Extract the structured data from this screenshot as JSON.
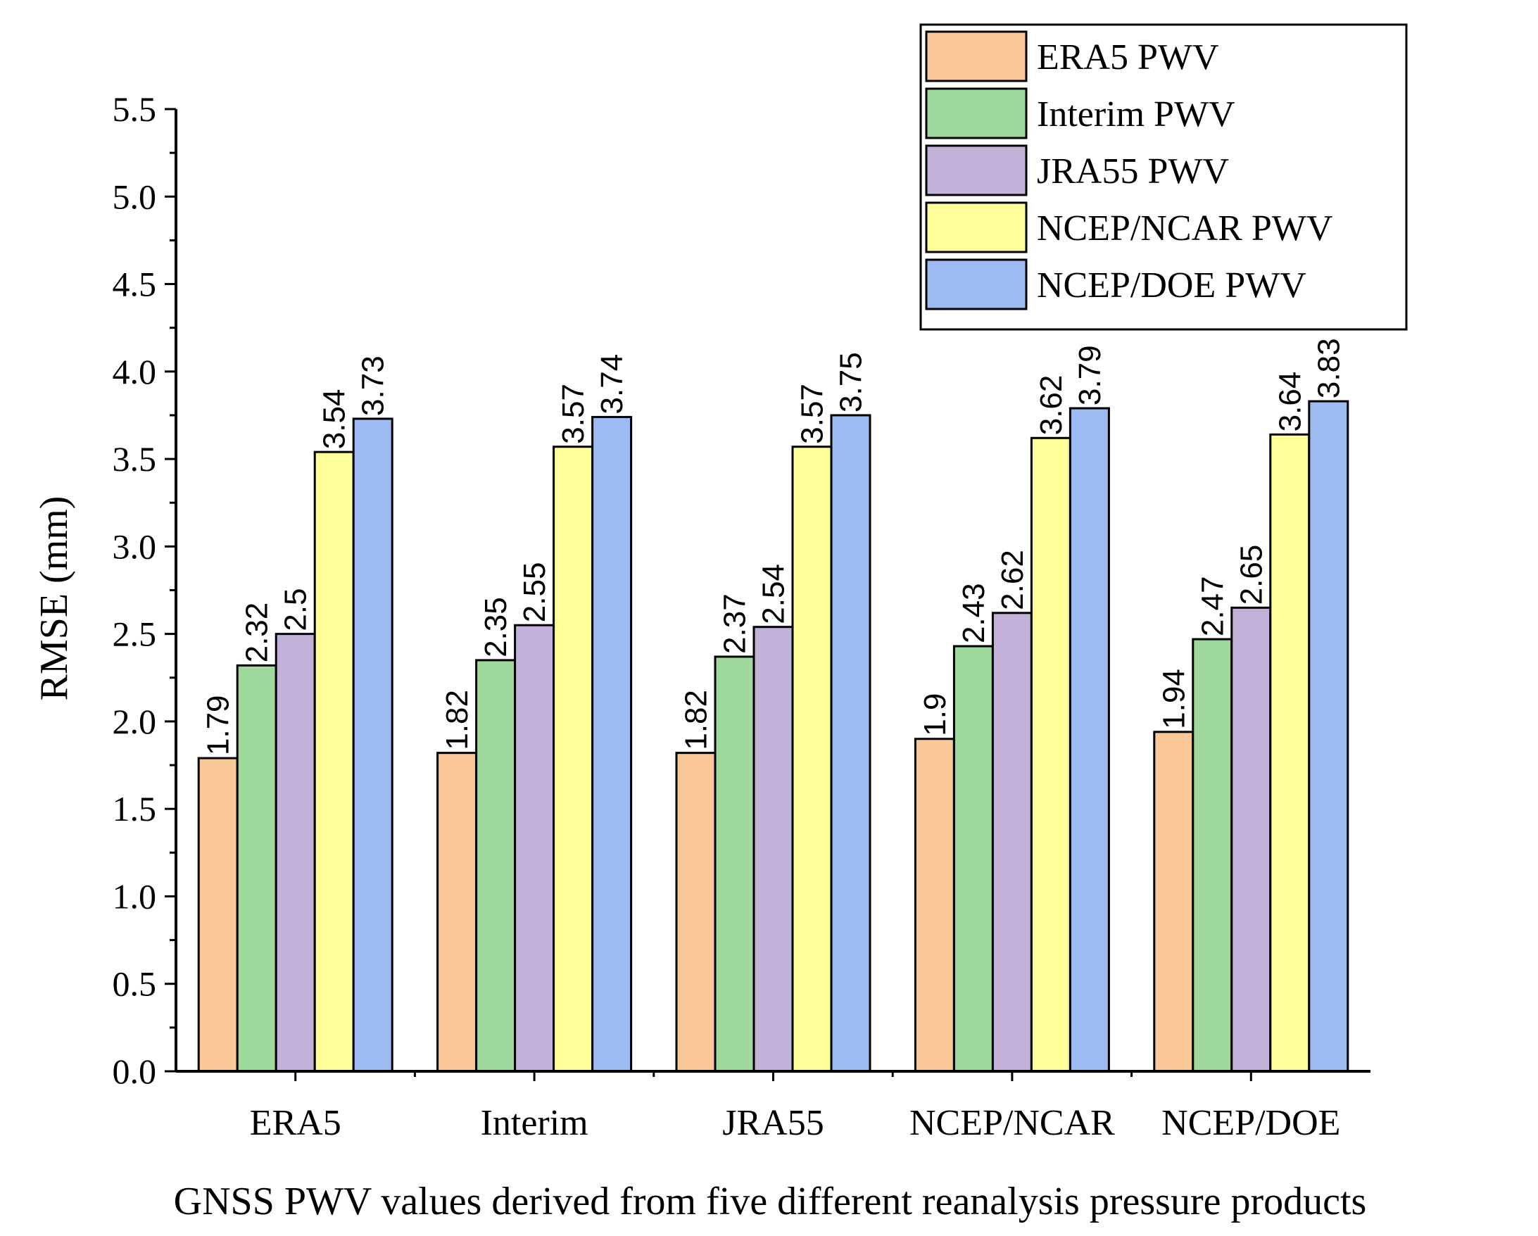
{
  "chart_data": {
    "type": "bar",
    "title": "",
    "xlabel": "GNSS PWV values derived from five different reanalysis pressure products",
    "ylabel": "RMSE (mm)",
    "ylim": [
      0,
      5.5
    ],
    "yticks": [
      "0.0",
      "0.5",
      "1.0",
      "1.5",
      "2.0",
      "2.5",
      "3.0",
      "3.5",
      "4.0",
      "4.5",
      "5.0",
      "5.5"
    ],
    "grid": false,
    "legend_position": "top-right",
    "categories": [
      "ERA5",
      "Interim",
      "JRA55",
      "NCEP/NCAR",
      "NCEP/DOE"
    ],
    "series": [
      {
        "name": "ERA5 PWV",
        "color": "#FAC896",
        "values": [
          1.79,
          1.82,
          1.82,
          1.9,
          1.94
        ],
        "labels": [
          "1.79",
          "1.82",
          "1.82",
          "1.9",
          "1.94"
        ]
      },
      {
        "name": "Interim PWV",
        "color": "#9ED89A",
        "values": [
          2.32,
          2.35,
          2.37,
          2.43,
          2.47
        ],
        "labels": [
          "2.32",
          "2.35",
          "2.37",
          "2.43",
          "2.47"
        ]
      },
      {
        "name": "JRA55 PWV",
        "color": "#C2B2D9",
        "values": [
          2.5,
          2.55,
          2.54,
          2.62,
          2.65
        ],
        "labels": [
          "2.5",
          "2.55",
          "2.54",
          "2.62",
          "2.65"
        ]
      },
      {
        "name": "NCEP/NCAR PWV",
        "color": "#FFFF99",
        "values": [
          3.54,
          3.57,
          3.57,
          3.62,
          3.64
        ],
        "labels": [
          "3.54",
          "3.57",
          "3.57",
          "3.62",
          "3.64"
        ]
      },
      {
        "name": "NCEP/DOE PWV",
        "color": "#9EBAF2",
        "values": [
          3.73,
          3.74,
          3.75,
          3.79,
          3.83
        ],
        "labels": [
          "3.73",
          "3.74",
          "3.75",
          "3.79",
          "3.83"
        ]
      }
    ]
  }
}
